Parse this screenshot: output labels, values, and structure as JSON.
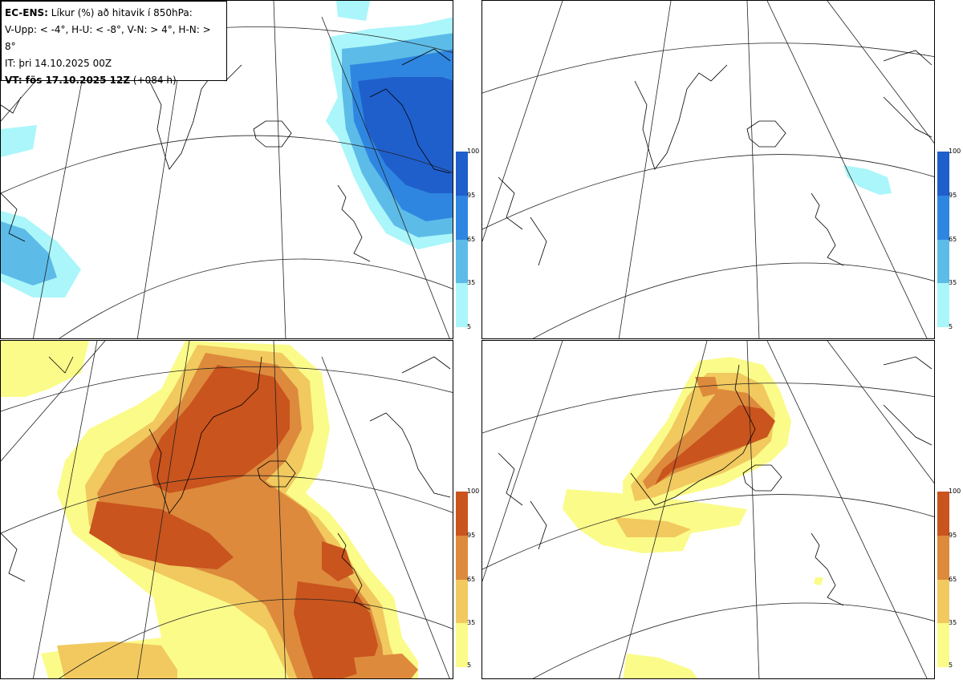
{
  "header": {
    "line1_bold": "EC-ENS:",
    "line1_rest": " Líkur (%) að hitavik í 850hPa:",
    "line2": "V-Upp: < -4°, H-U: < -8°, V-N: > 4°, H-N: > 8°",
    "line3": "IT: þri 14.10.2025 00Z",
    "line4_bold": "VT: fös 17.10.2025 12Z",
    "line4_rest": " (+084 h)"
  },
  "panels": [
    {
      "id": "top-left",
      "variable": "V-Upp",
      "threshold": "< -4°",
      "palette": "blue"
    },
    {
      "id": "top-right",
      "variable": "H-U",
      "threshold": "< -8°",
      "palette": "blue"
    },
    {
      "id": "bottom-left",
      "variable": "V-N",
      "threshold": "> 4°",
      "palette": "orange"
    },
    {
      "id": "bottom-right",
      "variable": "H-N",
      "threshold": "> 8°",
      "palette": "orange"
    }
  ],
  "colorbar": {
    "ticks": [
      "100",
      "95",
      "65",
      "35",
      "5"
    ],
    "blue_colors": [
      "#1f5fcc",
      "#2f86e0",
      "#5dbbe8",
      "#aaf6fa"
    ],
    "orange_colors": [
      "#c9541d",
      "#dd8a3c",
      "#f1c95e",
      "#fbfb8a"
    ]
  }
}
